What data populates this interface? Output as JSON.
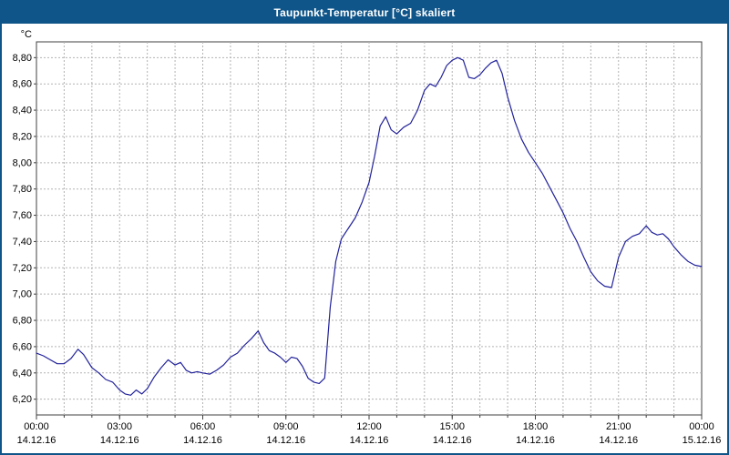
{
  "window": {
    "title": "Taupunkt-Temperatur [°C] skaliert"
  },
  "colors": {
    "title_bar_bg": "#0f5589",
    "title_text": "#ffffff",
    "page_border": "#0f5589",
    "plot_bg": "#ffffff",
    "grid": "#b3b3b3",
    "axis": "#404040",
    "line": "#22229b",
    "label": "#000000"
  },
  "chart_data": {
    "type": "line",
    "title": "Taupunkt-Temperatur [°C] skaliert",
    "ylabel": "°C",
    "xlabel": "",
    "xlim": [
      0,
      24
    ],
    "ylim": [
      6.08,
      8.92
    ],
    "grid": {
      "vertical_step_hours": 1,
      "horizontal_step": 0.2,
      "style": "dashed"
    },
    "legend": "none",
    "y_ticks": [
      {
        "value": 8.8,
        "label": "8,80"
      },
      {
        "value": 8.6,
        "label": "8,60"
      },
      {
        "value": 8.4,
        "label": "8,40"
      },
      {
        "value": 8.2,
        "label": "8,20"
      },
      {
        "value": 8.0,
        "label": "8,00"
      },
      {
        "value": 7.8,
        "label": "7,80"
      },
      {
        "value": 7.6,
        "label": "7,60"
      },
      {
        "value": 7.4,
        "label": "7,40"
      },
      {
        "value": 7.2,
        "label": "7,20"
      },
      {
        "value": 7.0,
        "label": "7,00"
      },
      {
        "value": 6.8,
        "label": "6,80"
      },
      {
        "value": 6.6,
        "label": "6,60"
      },
      {
        "value": 6.4,
        "label": "6,40"
      },
      {
        "value": 6.2,
        "label": "6,20"
      }
    ],
    "x_ticks": [
      {
        "hour": 0,
        "time": "00:00",
        "date": "14.12.16"
      },
      {
        "hour": 3,
        "time": "03:00",
        "date": "14.12.16"
      },
      {
        "hour": 6,
        "time": "06:00",
        "date": "14.12.16"
      },
      {
        "hour": 9,
        "time": "09:00",
        "date": "14.12.16"
      },
      {
        "hour": 12,
        "time": "12:00",
        "date": "14.12.16"
      },
      {
        "hour": 15,
        "time": "15:00",
        "date": "14.12.16"
      },
      {
        "hour": 18,
        "time": "18:00",
        "date": "14.12.16"
      },
      {
        "hour": 21,
        "time": "21:00",
        "date": "14.12.16"
      },
      {
        "hour": 24,
        "time": "00:00",
        "date": "15.12.16"
      }
    ],
    "series": [
      {
        "name": "Taupunkt-Temperatur",
        "x": [
          0,
          0.25,
          0.5,
          0.75,
          1,
          1.25,
          1.5,
          1.7,
          2,
          2.25,
          2.5,
          2.75,
          3,
          3.2,
          3.4,
          3.6,
          3.8,
          4,
          4.25,
          4.5,
          4.75,
          5,
          5.2,
          5.4,
          5.6,
          5.8,
          6,
          6.25,
          6.5,
          6.75,
          7,
          7.25,
          7.5,
          7.75,
          8,
          8.2,
          8.4,
          8.6,
          8.8,
          9,
          9.2,
          9.4,
          9.6,
          9.8,
          10,
          10.2,
          10.4,
          10.6,
          10.8,
          11,
          11.25,
          11.5,
          11.75,
          12,
          12.2,
          12.4,
          12.6,
          12.8,
          13,
          13.25,
          13.5,
          13.75,
          14,
          14.2,
          14.4,
          14.6,
          14.8,
          15,
          15.2,
          15.4,
          15.6,
          15.8,
          16,
          16.2,
          16.4,
          16.6,
          16.8,
          17,
          17.25,
          17.5,
          17.75,
          18,
          18.25,
          18.5,
          18.75,
          19,
          19.25,
          19.5,
          19.75,
          20,
          20.25,
          20.5,
          20.75,
          21,
          21.25,
          21.5,
          21.75,
          22,
          22.2,
          22.4,
          22.6,
          22.8,
          23,
          23.25,
          23.5,
          23.75,
          24
        ],
        "y": [
          6.55,
          6.53,
          6.5,
          6.47,
          6.47,
          6.51,
          6.58,
          6.54,
          6.44,
          6.4,
          6.35,
          6.33,
          6.27,
          6.24,
          6.23,
          6.27,
          6.24,
          6.28,
          6.37,
          6.44,
          6.5,
          6.46,
          6.48,
          6.42,
          6.4,
          6.41,
          6.4,
          6.39,
          6.42,
          6.46,
          6.52,
          6.55,
          6.61,
          6.66,
          6.72,
          6.63,
          6.57,
          6.55,
          6.52,
          6.48,
          6.52,
          6.51,
          6.45,
          6.36,
          6.33,
          6.32,
          6.36,
          6.9,
          7.25,
          7.42,
          7.5,
          7.58,
          7.7,
          7.85,
          8.05,
          8.28,
          8.35,
          8.25,
          8.22,
          8.27,
          8.3,
          8.4,
          8.55,
          8.6,
          8.58,
          8.65,
          8.74,
          8.78,
          8.8,
          8.78,
          8.65,
          8.64,
          8.67,
          8.72,
          8.76,
          8.78,
          8.68,
          8.5,
          8.32,
          8.18,
          8.08,
          8.0,
          7.92,
          7.82,
          7.72,
          7.62,
          7.5,
          7.4,
          7.28,
          7.17,
          7.1,
          7.06,
          7.05,
          7.28,
          7.4,
          7.44,
          7.46,
          7.52,
          7.47,
          7.45,
          7.46,
          7.42,
          7.36,
          7.3,
          7.25,
          7.22,
          7.21
        ]
      }
    ]
  }
}
